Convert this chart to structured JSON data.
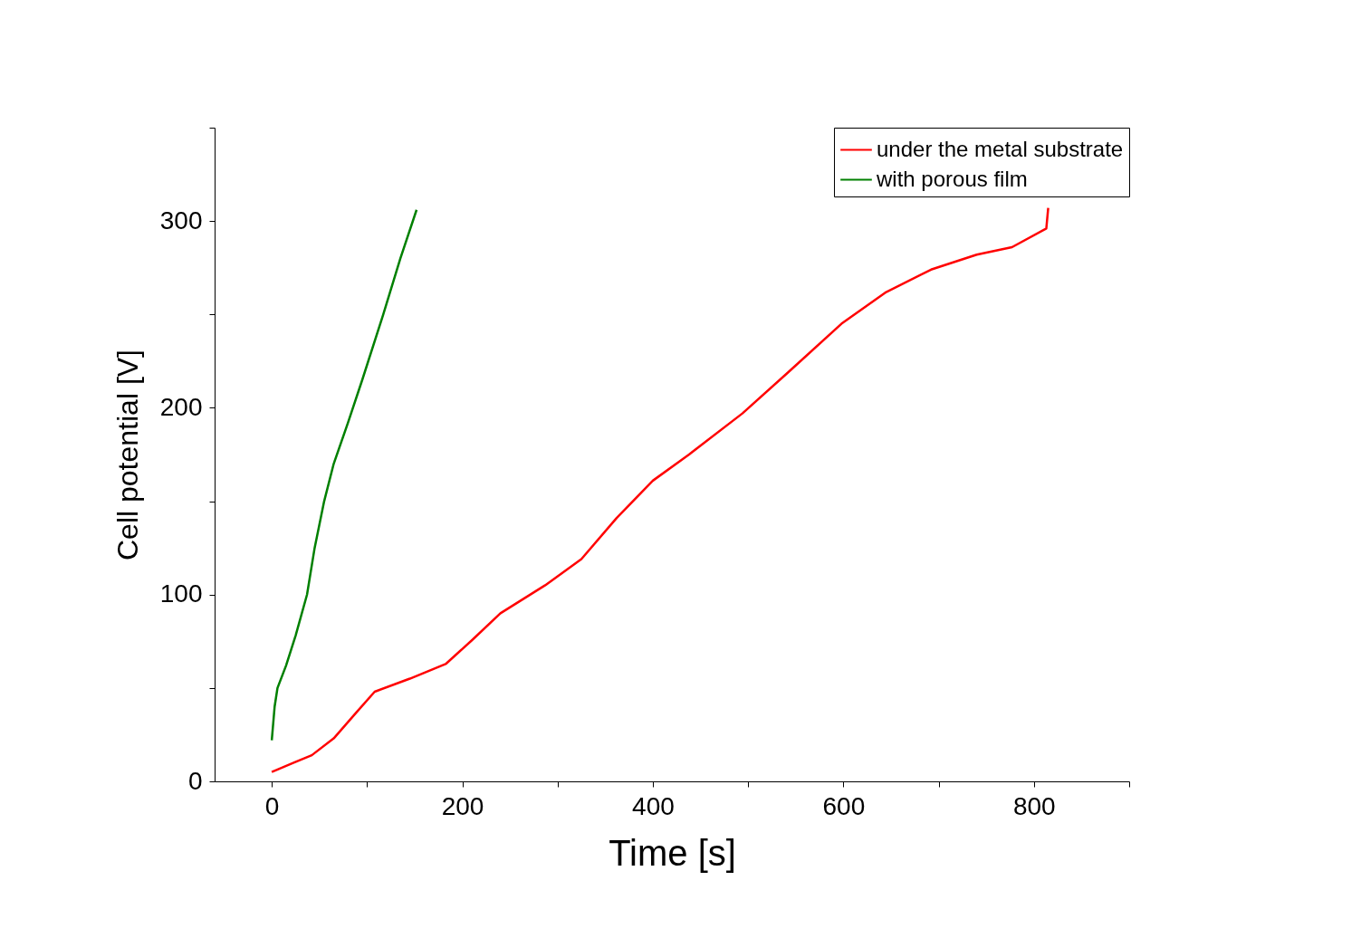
{
  "chart_data": {
    "type": "line",
    "xlabel": "Time [s]",
    "ylabel": "Cell potential [V]",
    "xlim": [
      -60,
      900
    ],
    "ylim": [
      0,
      350
    ],
    "xticks": [
      0,
      {
        "value": 100,
        "label": null
      },
      200,
      {
        "value": 300,
        "label": null
      },
      400,
      {
        "value": 500,
        "label": null
      },
      600,
      {
        "value": 700,
        "label": null
      },
      800,
      {
        "value": 900,
        "label": null
      }
    ],
    "yticks": [
      0,
      {
        "value": 50,
        "label": null
      },
      100,
      {
        "value": 150,
        "label": null
      },
      200,
      {
        "value": 250,
        "label": null
      },
      300,
      {
        "value": 350,
        "label": null
      }
    ],
    "grid": false,
    "legend": "top right",
    "line_style": "solid",
    "marker": "none",
    "series": [
      {
        "name": "under the metal substrate",
        "color": "#ff0000",
        "x": [
          0,
          23,
          42,
          65,
          89,
          108,
          145,
          183,
          211,
          240,
          287,
          325,
          362,
          400,
          438,
          494,
          542,
          598,
          645,
          692,
          740,
          777,
          813,
          815
        ],
        "values": [
          5,
          10,
          14,
          23,
          37,
          48,
          55,
          63,
          76,
          90,
          105,
          119,
          141,
          161,
          175,
          197,
          219,
          245,
          262,
          274,
          282,
          286,
          296,
          307
        ]
      },
      {
        "name": "with porous film",
        "color": "#008000",
        "x": [
          0,
          3,
          6,
          15,
          25,
          37,
          45,
          55,
          65,
          80,
          95,
          117,
          135,
          152
        ],
        "values": [
          22,
          40,
          50,
          62,
          78,
          100,
          125,
          150,
          170,
          192,
          215,
          250,
          280,
          306
        ]
      }
    ]
  }
}
